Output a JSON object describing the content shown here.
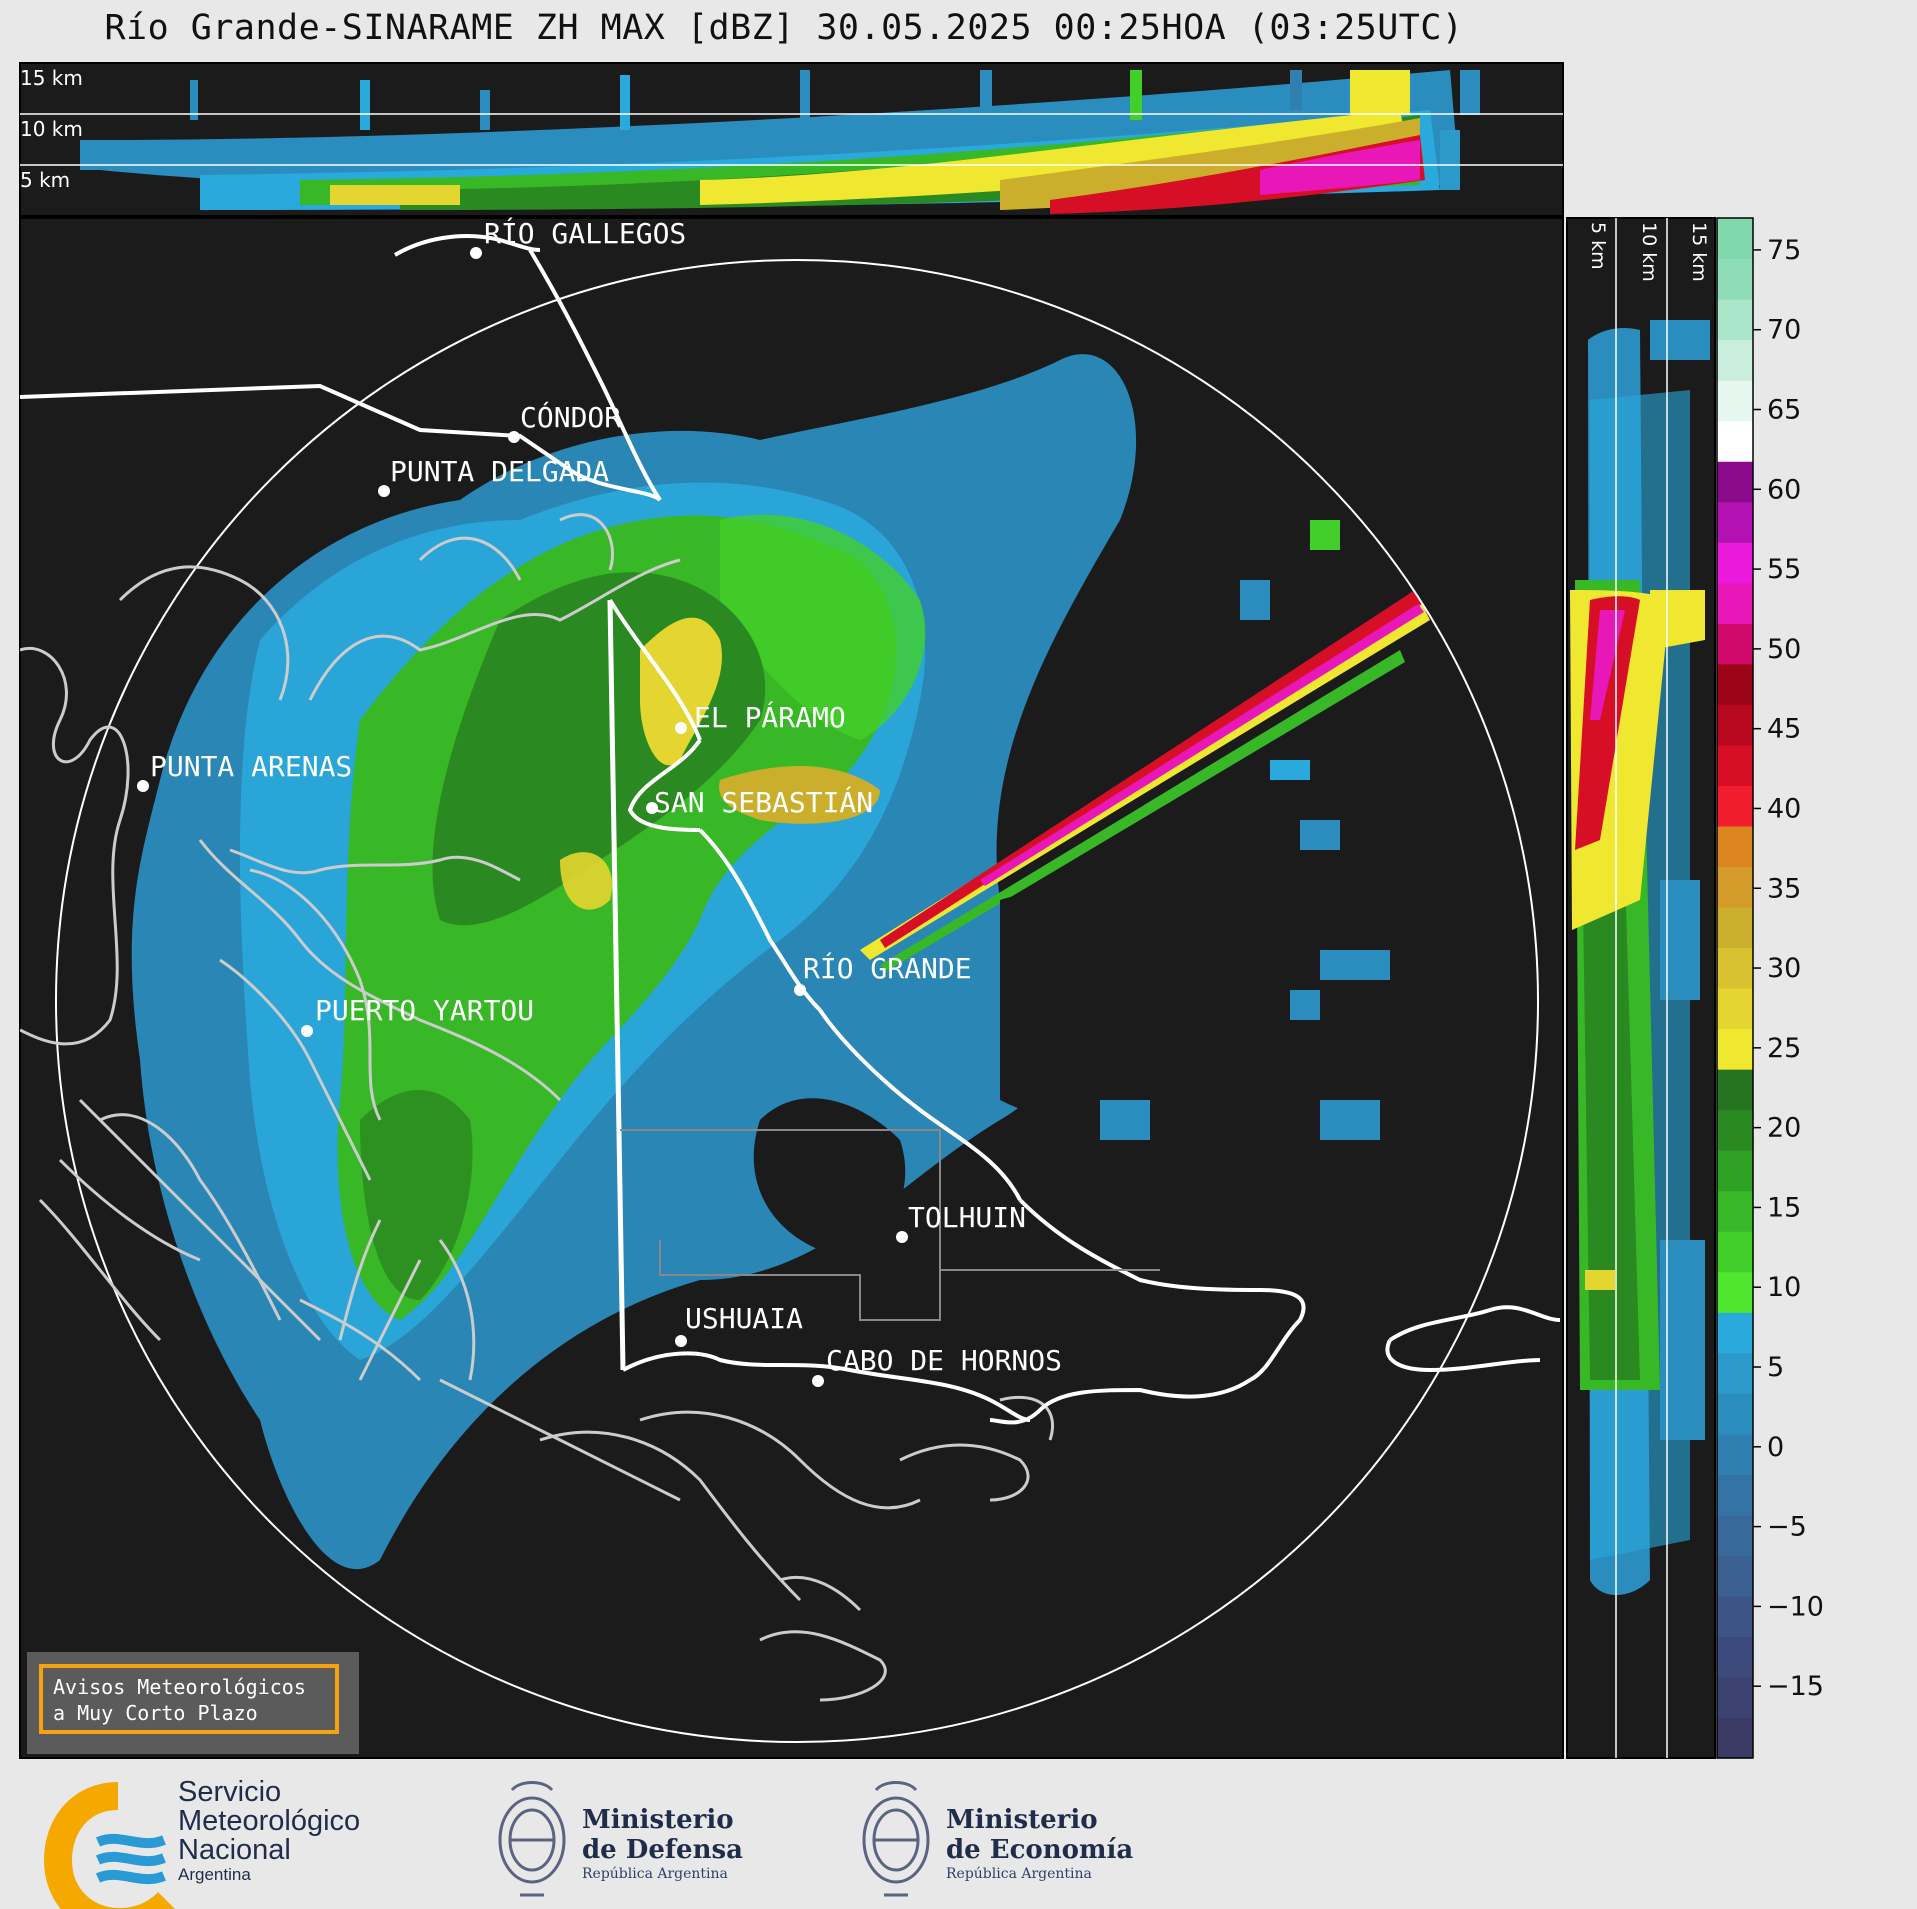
{
  "title": "Río Grande-SINARAME ZH MAX [dBZ] 30.05.2025 00:25HOA (03:25UTC)",
  "top_panel": {
    "height_labels": [
      "15 km",
      "10 km",
      "5 km"
    ]
  },
  "side_panel": {
    "height_labels": [
      "5 km",
      "10 km",
      "15 km"
    ]
  },
  "colorbar": {
    "unit": "dBZ",
    "ticks": [
      "75",
      "70",
      "65",
      "60",
      "55",
      "50",
      "45",
      "40",
      "35",
      "30",
      "25",
      "20",
      "15",
      "10",
      "5",
      "0",
      "−5",
      "−10",
      "−15"
    ],
    "colors_bottom_to_top": [
      "#3a3a64",
      "#3b4270",
      "#3d4a7c",
      "#3d5586",
      "#3b5f91",
      "#37699a",
      "#3374a5",
      "#2f80b1",
      "#2b8cbe",
      "#2b99ca",
      "#2aa9dc",
      "#50e62f",
      "#43cf2a",
      "#38b827",
      "#2fa124",
      "#2a8a21",
      "#25741f",
      "#f0e830",
      "#e4d530",
      "#d8c22f",
      "#ccae2d",
      "#d49a2a",
      "#dc8520",
      "#ef1d2e",
      "#d60f26",
      "#b80820",
      "#9c0418",
      "#d00a6a",
      "#e818b8",
      "#ea19dc",
      "#b411b3",
      "#8a0a8c",
      "#ffffff",
      "#e6f7ef",
      "#c9eedd",
      "#ace6ca",
      "#8fddb8",
      "#82d8ad"
    ]
  },
  "cities": [
    {
      "name": "RÍO GALLEGOS"
    },
    {
      "name": "CÓNDOR"
    },
    {
      "name": "PUNTA DELGADA"
    },
    {
      "name": "PUNTA ARENAS"
    },
    {
      "name": "EL PÁRAMO"
    },
    {
      "name": "SAN SEBASTIÁN"
    },
    {
      "name": "RÍO GRANDE"
    },
    {
      "name": "PUERTO YARTOU"
    },
    {
      "name": "TOLHUIN"
    },
    {
      "name": "USHUAIA"
    },
    {
      "name": "CABO DE HORNOS"
    }
  ],
  "warning": {
    "line1": "Avisos Meteorológicos",
    "line2": "a Muy Corto Plazo"
  },
  "footer": {
    "smn": {
      "line1": "Servicio",
      "line2": "Meteorológico",
      "line3": "Nacional",
      "line4": "Argentina"
    },
    "defensa": {
      "line1": "Ministerio",
      "line2": "de Defensa",
      "line3": "República Argentina"
    },
    "economia": {
      "line1": "Ministerio",
      "line2": "de Economía",
      "line3": "República Argentina"
    }
  },
  "colors": {
    "panel_bg": "#1b1b1b",
    "page_bg": "#e8e8e8",
    "coast": "#cccccc",
    "border": "#ffffff",
    "accent_orange": "#f5a310",
    "smn_blue": "#2a9ad6",
    "smn_orange": "#f5a800"
  }
}
